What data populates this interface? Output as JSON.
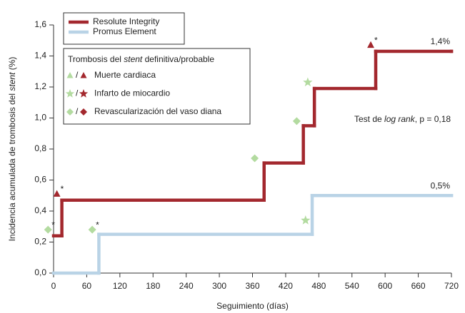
{
  "chart_data": {
    "type": "step",
    "ylabel": [
      {
        "text": "Incidencia acumulada de trombosis del "
      },
      {
        "text": "stent",
        "style": "italic"
      },
      {
        "text": " (%)"
      }
    ],
    "xlabel": "Seguimiento (días)",
    "xlim": [
      0,
      720
    ],
    "xticks": [
      0,
      60,
      120,
      180,
      240,
      300,
      360,
      420,
      480,
      540,
      600,
      660,
      720
    ],
    "ylim": [
      0,
      1.6
    ],
    "yticks": [
      {
        "value": 0,
        "label": "0,0"
      },
      {
        "value": 0.2,
        "label": "0,2"
      },
      {
        "value": 0.4,
        "label": "0,4"
      },
      {
        "value": 0.6,
        "label": "0,6"
      },
      {
        "value": 0.8,
        "label": "0,8"
      },
      {
        "value": 1.0,
        "label": "1,0"
      },
      {
        "value": 1.2,
        "label": "1,2"
      },
      {
        "value": 1.4,
        "label": "1,4"
      },
      {
        "value": 1.6,
        "label": "1,6"
      }
    ],
    "series": [
      {
        "name": "Resolute Integrity",
        "color": "#a3282e",
        "x": [
          0,
          15,
          381,
          452,
          472,
          583,
          720
        ],
        "values": [
          0.24,
          0.47,
          0.71,
          0.95,
          1.19,
          1.43,
          1.43
        ],
        "end_label": "1,4%"
      },
      {
        "name": "Promus Element",
        "color": "#b9d3e6",
        "x": [
          0,
          82,
          468,
          720
        ],
        "values": [
          0,
          0.25,
          0.5,
          0.5
        ],
        "end_label": "0,5%"
      }
    ],
    "marker_legend": {
      "title": [
        {
          "text": "Trombosis del "
        },
        {
          "text": "stent",
          "style": "italic"
        },
        {
          "text": " definitiva/probable"
        }
      ],
      "separator": "/",
      "colors": [
        "#b3dba0",
        "#a3282e"
      ],
      "items": [
        {
          "shape": "triangle",
          "label": "Muerte cardiaca"
        },
        {
          "shape": "star",
          "label": "Infarto de miocardio"
        },
        {
          "shape": "diamond",
          "label": "Revascularización del vaso diana"
        }
      ]
    },
    "events": [
      {
        "shape": "diamond",
        "color": "#b3dba0",
        "x": -10,
        "y": 0.28,
        "note": "*"
      },
      {
        "shape": "triangle",
        "color": "#a3282e",
        "x": 6,
        "y": 0.51,
        "note": "*"
      },
      {
        "shape": "diamond",
        "color": "#b3dba0",
        "x": 70,
        "y": 0.28,
        "note": "*"
      },
      {
        "shape": "diamond",
        "color": "#b3dba0",
        "x": 364,
        "y": 0.74
      },
      {
        "shape": "diamond",
        "color": "#b3dba0",
        "x": 440,
        "y": 0.98
      },
      {
        "shape": "star",
        "color": "#b3dba0",
        "x": 456,
        "y": 0.34
      },
      {
        "shape": "star",
        "color": "#b3dba0",
        "x": 460,
        "y": 1.23
      },
      {
        "shape": "triangle",
        "color": "#a3282e",
        "x": 574,
        "y": 1.47,
        "note": "*"
      }
    ],
    "annotation": [
      {
        "text": "Test de "
      },
      {
        "text": "log rank",
        "style": "italic"
      },
      {
        "text": ", p = 0,18"
      }
    ]
  }
}
